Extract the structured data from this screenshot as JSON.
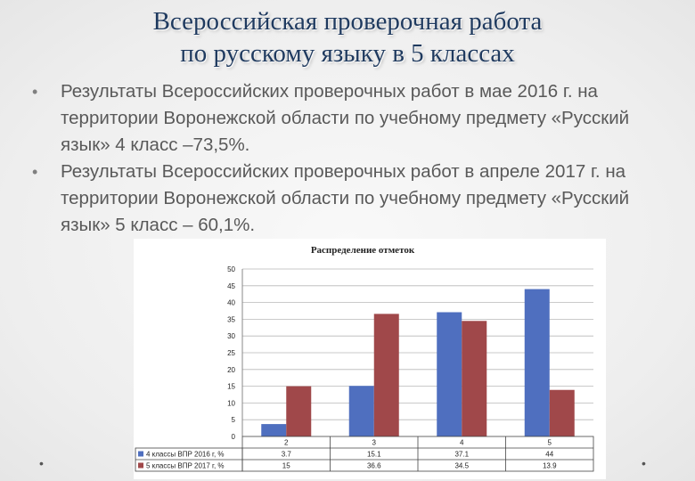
{
  "slide": {
    "title_line1": "Всероссийская проверочная работа",
    "title_line2": "по русскому языку в 5 классах",
    "bullets": [
      "Результаты Всероссийских проверочных работ в мае 2016 г. на территории Воронежской области по учебному предмету «Русский язык» 4 класс –73,5%.",
      "Результаты Всероссийских проверочных работ в апреле 2017 г. на территории Воронежской области по учебному предмету «Русский язык» 5 класс – 60,1%."
    ],
    "bullet_glyph": "•",
    "nav_glyph": "•"
  },
  "chart_data": {
    "type": "bar",
    "title": "Распределение отметок",
    "categories": [
      "2",
      "3",
      "4",
      "5"
    ],
    "series": [
      {
        "name": "4 классы ВПР 2016 г, %",
        "values": [
          3.7,
          15.1,
          37.1,
          44
        ],
        "labels": [
          "3.7",
          "15.1",
          "37.1",
          "44"
        ],
        "color": "#4f6fbf"
      },
      {
        "name": "5 классы ВПР 2017 г, %",
        "values": [
          15,
          36.6,
          34.5,
          13.9
        ],
        "labels": [
          "15",
          "36.6",
          "34.5",
          "13.9"
        ],
        "color": "#a0484a"
      }
    ],
    "ylim": [
      0,
      50
    ],
    "yticks": [
      0,
      5,
      10,
      15,
      20,
      25,
      30,
      35,
      40,
      45,
      50
    ],
    "grid": true,
    "legend": "data-table"
  }
}
